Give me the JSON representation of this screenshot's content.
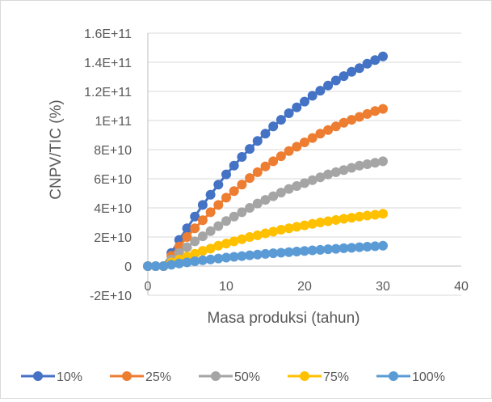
{
  "chart_data": {
    "type": "scatter",
    "title": "",
    "xlabel": "Masa produksi (tahun)",
    "ylabel": "CNPV/TIC (%)",
    "xlim": [
      0,
      40
    ],
    "ylim": [
      -20000000000,
      160000000000
    ],
    "x_ticks": [
      "0",
      "10",
      "20",
      "30",
      "40"
    ],
    "y_ticks": [
      "-2E+10",
      "0",
      "2E+10",
      "4E+10",
      "6E+10",
      "8E+10",
      "1E+11",
      "1.2E+11",
      "1.4E+11",
      "1.6E+11"
    ],
    "grid": "horizontal",
    "legend_position": "bottom",
    "x": [
      0,
      1,
      2,
      3,
      4,
      5,
      6,
      7,
      8,
      9,
      10,
      11,
      12,
      13,
      14,
      15,
      16,
      17,
      18,
      19,
      20,
      21,
      22,
      23,
      24,
      25,
      26,
      27,
      28,
      29,
      30
    ],
    "series": [
      {
        "name": "10%",
        "color": "#4472C4",
        "values": [
          0,
          0,
          0,
          9000000000,
          18000000000,
          26000000000,
          34000000000,
          42000000000,
          49000000000,
          56000000000,
          63000000000,
          69000000000,
          75000000000,
          80500000000,
          86000000000,
          91000000000,
          96000000000,
          100500000000,
          105000000000,
          109000000000,
          113000000000,
          117000000000,
          120500000000,
          124000000000,
          127500000000,
          130500000000,
          133500000000,
          136000000000,
          139000000000,
          141500000000,
          144000000000
        ]
      },
      {
        "name": "25%",
        "color": "#ED7D31",
        "values": [
          0,
          0,
          0,
          7000000000,
          13500000000,
          20000000000,
          26000000000,
          31500000000,
          37000000000,
          42000000000,
          47000000000,
          51500000000,
          56000000000,
          60500000000,
          64500000000,
          68500000000,
          72000000000,
          75500000000,
          79000000000,
          82000000000,
          85000000000,
          88000000000,
          91000000000,
          93500000000,
          96000000000,
          98500000000,
          100500000000,
          102500000000,
          104500000000,
          106500000000,
          108000000000
        ]
      },
      {
        "name": "50%",
        "color": "#A5A5A5",
        "values": [
          0,
          0,
          0,
          4500000000,
          9000000000,
          13000000000,
          17000000000,
          20500000000,
          24000000000,
          27500000000,
          31000000000,
          34000000000,
          37000000000,
          40000000000,
          43000000000,
          45500000000,
          48000000000,
          50500000000,
          53000000000,
          55000000000,
          57000000000,
          59000000000,
          61000000000,
          63000000000,
          64500000000,
          66000000000,
          67500000000,
          69000000000,
          70000000000,
          71000000000,
          72000000000
        ]
      },
      {
        "name": "75%",
        "color": "#FFC000",
        "values": [
          0,
          0,
          0,
          2500000000,
          4500000000,
          6500000000,
          8500000000,
          10500000000,
          12000000000,
          14000000000,
          15500000000,
          17000000000,
          18500000000,
          20000000000,
          21200000000,
          22500000000,
          23700000000,
          25000000000,
          26000000000,
          27000000000,
          28000000000,
          29000000000,
          30000000000,
          30800000000,
          31700000000,
          32500000000,
          33200000000,
          34000000000,
          34700000000,
          35300000000,
          36000000000
        ]
      },
      {
        "name": "100%",
        "color": "#5B9BD5",
        "values": [
          0,
          0,
          0,
          1000000000,
          1800000000,
          2600000000,
          3300000000,
          4000000000,
          4600000000,
          5200000000,
          5800000000,
          6400000000,
          6900000000,
          7400000000,
          7900000000,
          8400000000,
          8800000000,
          9200000000,
          9600000000,
          10000000000,
          10400000000,
          10800000000,
          11200000000,
          11600000000,
          11900000000,
          12300000000,
          12600000000,
          13000000000,
          13300000000,
          13700000000,
          14000000000
        ]
      }
    ]
  }
}
